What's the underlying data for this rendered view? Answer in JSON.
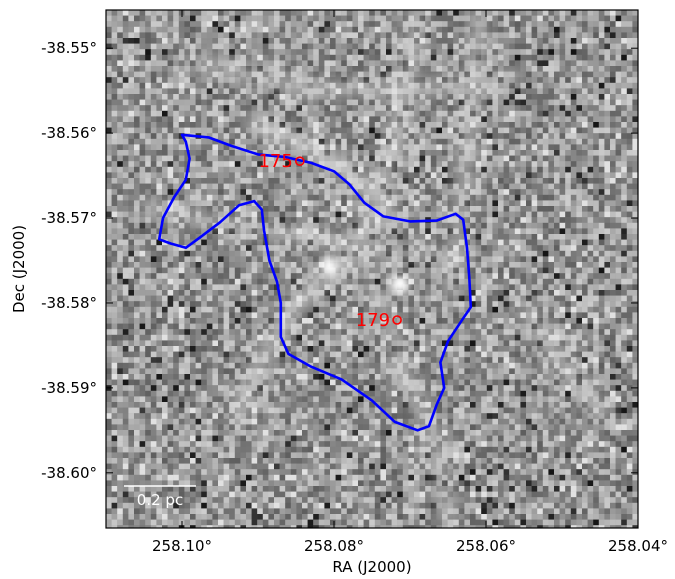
{
  "image": {
    "colormap": "grayscale",
    "description_stretch": "mottled gray dust/molecular emission map with bright filamentary structures"
  },
  "axes": {
    "xlabel": "RA (J2000)",
    "ylabel": "Dec (J2000)",
    "xlim": [
      258.11,
      258.04
    ],
    "ylim": [
      -38.6065,
      -38.5455
    ],
    "xticks": [
      {
        "value": 258.1,
        "label": "258.10°"
      },
      {
        "value": 258.08,
        "label": "258.08°"
      },
      {
        "value": 258.06,
        "label": "258.06°"
      },
      {
        "value": 258.04,
        "label": "258.04°"
      }
    ],
    "yticks": [
      {
        "value": -38.55,
        "label": "-38.55°"
      },
      {
        "value": -38.56,
        "label": "-38.56°"
      },
      {
        "value": -38.57,
        "label": "-38.57°"
      },
      {
        "value": -38.58,
        "label": "-38.58°"
      },
      {
        "value": -38.59,
        "label": "-38.59°"
      },
      {
        "value": -38.6,
        "label": "-38.60°"
      }
    ]
  },
  "sources": [
    {
      "id": "175",
      "label": "175",
      "ra": 258.0845,
      "dec": -38.5633,
      "color": "#ff0000"
    },
    {
      "id": "179",
      "label": "179",
      "ra": 258.0717,
      "dec": -38.582,
      "color": "#ff0000"
    }
  ],
  "contour": {
    "color": "#0000ff",
    "points": [
      [
        258.1,
        -38.5602
      ],
      [
        258.0965,
        -38.5605
      ],
      [
        258.0935,
        -38.5615
      ],
      [
        258.09,
        -38.5625
      ],
      [
        258.0865,
        -38.5628
      ],
      [
        258.083,
        -38.5635
      ],
      [
        258.08,
        -38.5645
      ],
      [
        258.078,
        -38.566
      ],
      [
        258.076,
        -38.5682
      ],
      [
        258.0735,
        -38.5698
      ],
      [
        258.07,
        -38.5704
      ],
      [
        258.0665,
        -38.5703
      ],
      [
        258.064,
        -38.5695
      ],
      [
        258.063,
        -38.5702
      ],
      [
        258.0625,
        -38.5735
      ],
      [
        258.0622,
        -38.577
      ],
      [
        258.062,
        -38.5805
      ],
      [
        258.063,
        -38.5818
      ],
      [
        258.065,
        -38.5845
      ],
      [
        258.066,
        -38.587
      ],
      [
        258.0655,
        -38.59
      ],
      [
        258.0665,
        -38.592
      ],
      [
        258.0675,
        -38.5945
      ],
      [
        258.069,
        -38.595
      ],
      [
        258.072,
        -38.594
      ],
      [
        258.075,
        -38.5915
      ],
      [
        258.079,
        -38.589
      ],
      [
        258.083,
        -38.5875
      ],
      [
        258.086,
        -38.586
      ],
      [
        258.087,
        -38.584
      ],
      [
        258.087,
        -38.58
      ],
      [
        258.0875,
        -38.5775
      ],
      [
        258.0885,
        -38.575
      ],
      [
        258.0892,
        -38.5715
      ],
      [
        258.0895,
        -38.569
      ],
      [
        258.0905,
        -38.568
      ],
      [
        258.0925,
        -38.5685
      ],
      [
        258.095,
        -38.5705
      ],
      [
        258.0975,
        -38.5722
      ],
      [
        258.0995,
        -38.5735
      ],
      [
        258.1015,
        -38.573
      ],
      [
        258.103,
        -38.5725
      ],
      [
        258.1025,
        -38.57
      ],
      [
        258.101,
        -38.5675
      ],
      [
        258.0995,
        -38.5655
      ],
      [
        258.099,
        -38.563
      ],
      [
        258.0995,
        -38.561
      ],
      [
        258.1,
        -38.5602
      ]
    ]
  },
  "scalebar": {
    "label": "0.2 pc"
  }
}
